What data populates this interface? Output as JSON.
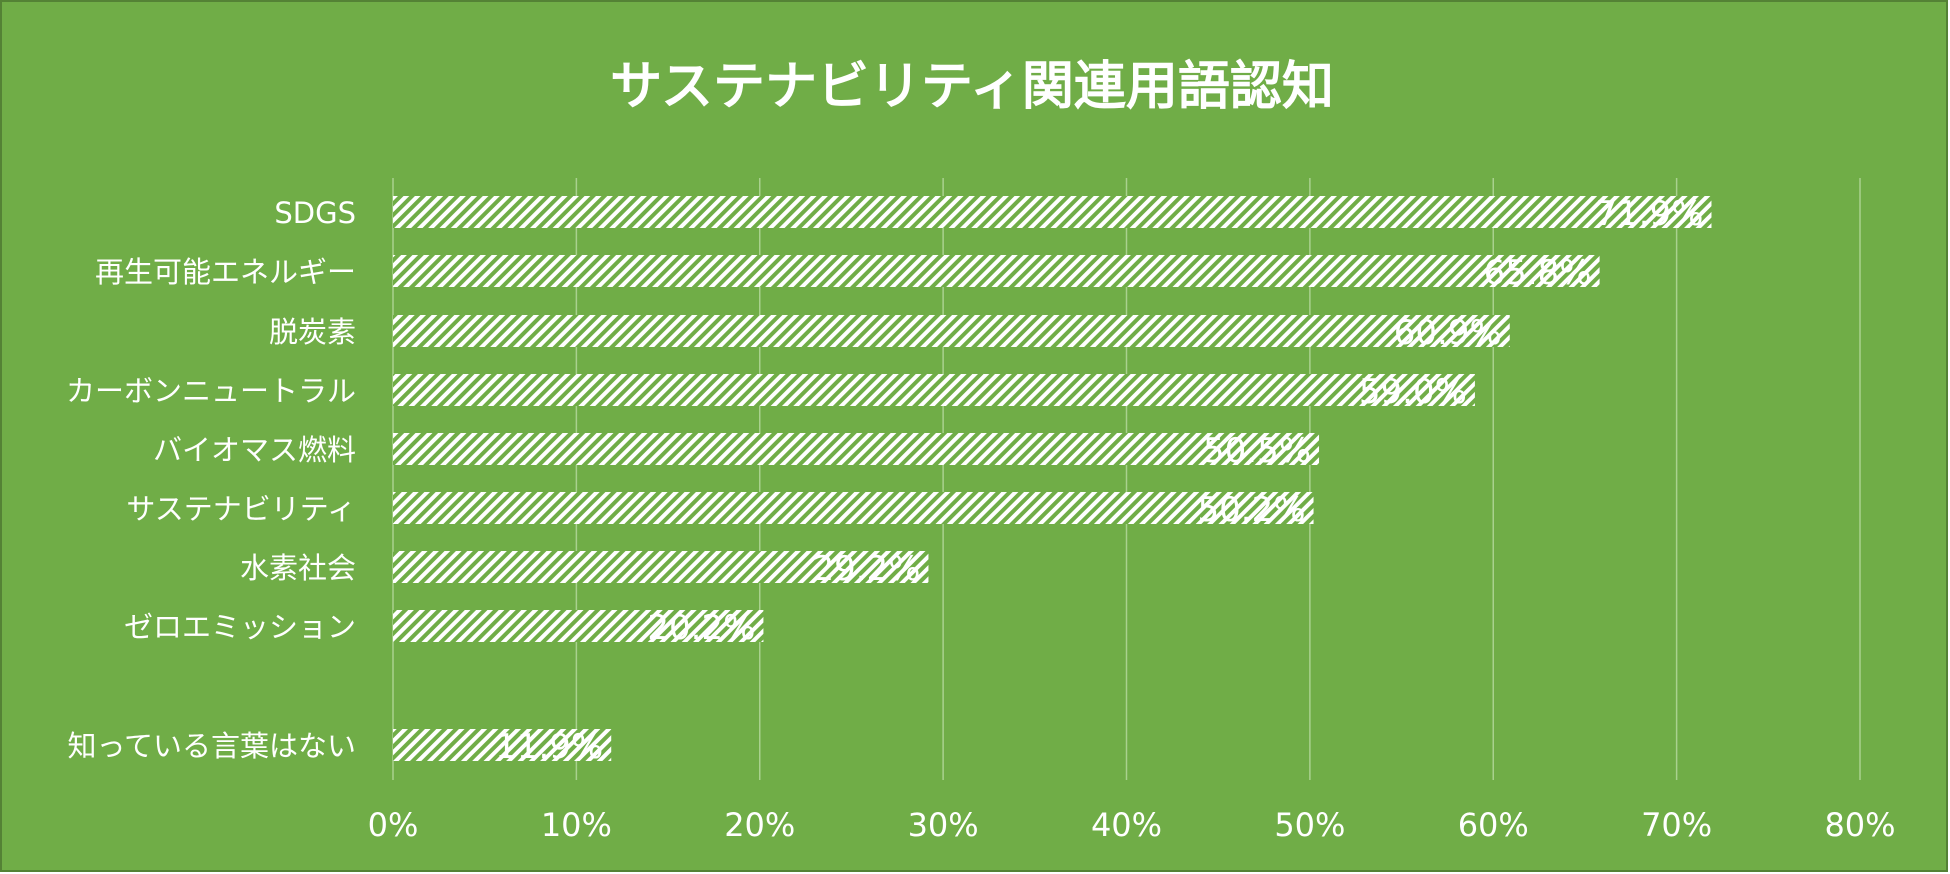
{
  "colors": {
    "background": "#70ad47",
    "border": "#548235",
    "text": "#ffffff",
    "grid": "#a9d18e",
    "bar_stripe": "#ffffff"
  },
  "chart_data": {
    "type": "bar",
    "orientation": "horizontal",
    "title": "サステナビリティ関連用語認知",
    "categories": [
      "SDGS",
      "再生可能エネルギー",
      "脱炭素",
      "カーボンニュートラル",
      "バイオマス燃料",
      "サステナビリティ",
      "水素社会",
      "ゼロエミッション",
      "知っている言葉はない"
    ],
    "values": [
      71.9,
      65.8,
      60.9,
      59.0,
      50.5,
      50.2,
      29.2,
      20.2,
      11.9
    ],
    "data_labels": [
      "71.9%",
      "65.8%",
      "60.9%",
      "59.0%",
      "50.5%",
      "50.2%",
      "29.2%",
      "20.2%",
      "11.9%"
    ],
    "xlim": [
      0,
      80
    ],
    "x_ticks": [
      "0%",
      "10%",
      "20%",
      "30%",
      "40%",
      "50%",
      "60%",
      "70%",
      "80%"
    ],
    "x_tick_values": [
      0,
      10,
      20,
      30,
      40,
      50,
      60,
      70,
      80
    ],
    "grid": "vertical",
    "legend": "none",
    "bar_pattern": "diagonal-stripes"
  }
}
